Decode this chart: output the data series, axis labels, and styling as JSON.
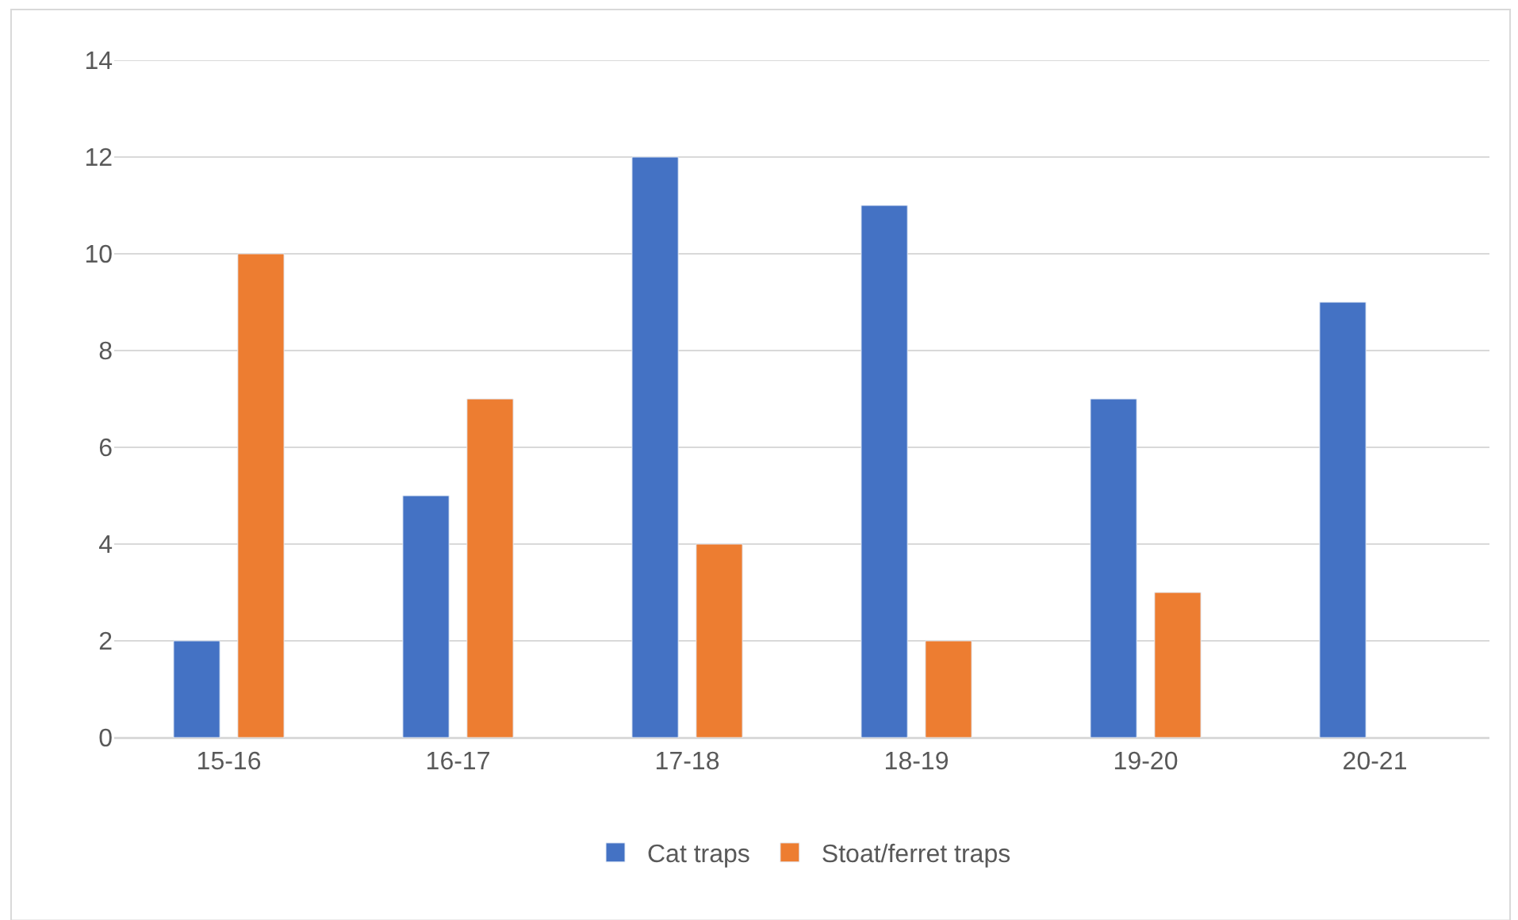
{
  "chart_data": {
    "type": "bar",
    "categories": [
      "15-16",
      "16-17",
      "17-18",
      "18-19",
      "19-20",
      "20-21"
    ],
    "series": [
      {
        "name": "Cat traps",
        "color": "#4472c4",
        "values": [
          2,
          5,
          12,
          11,
          7,
          9
        ]
      },
      {
        "name": "Stoat/ferret traps",
        "color": "#ed7d31",
        "values": [
          10,
          7,
          4,
          2,
          3,
          null
        ]
      }
    ],
    "ylim": [
      0,
      14
    ],
    "yticks": [
      0,
      2,
      4,
      6,
      8,
      10,
      12,
      14
    ],
    "grid": "y",
    "legend": "bottom"
  }
}
